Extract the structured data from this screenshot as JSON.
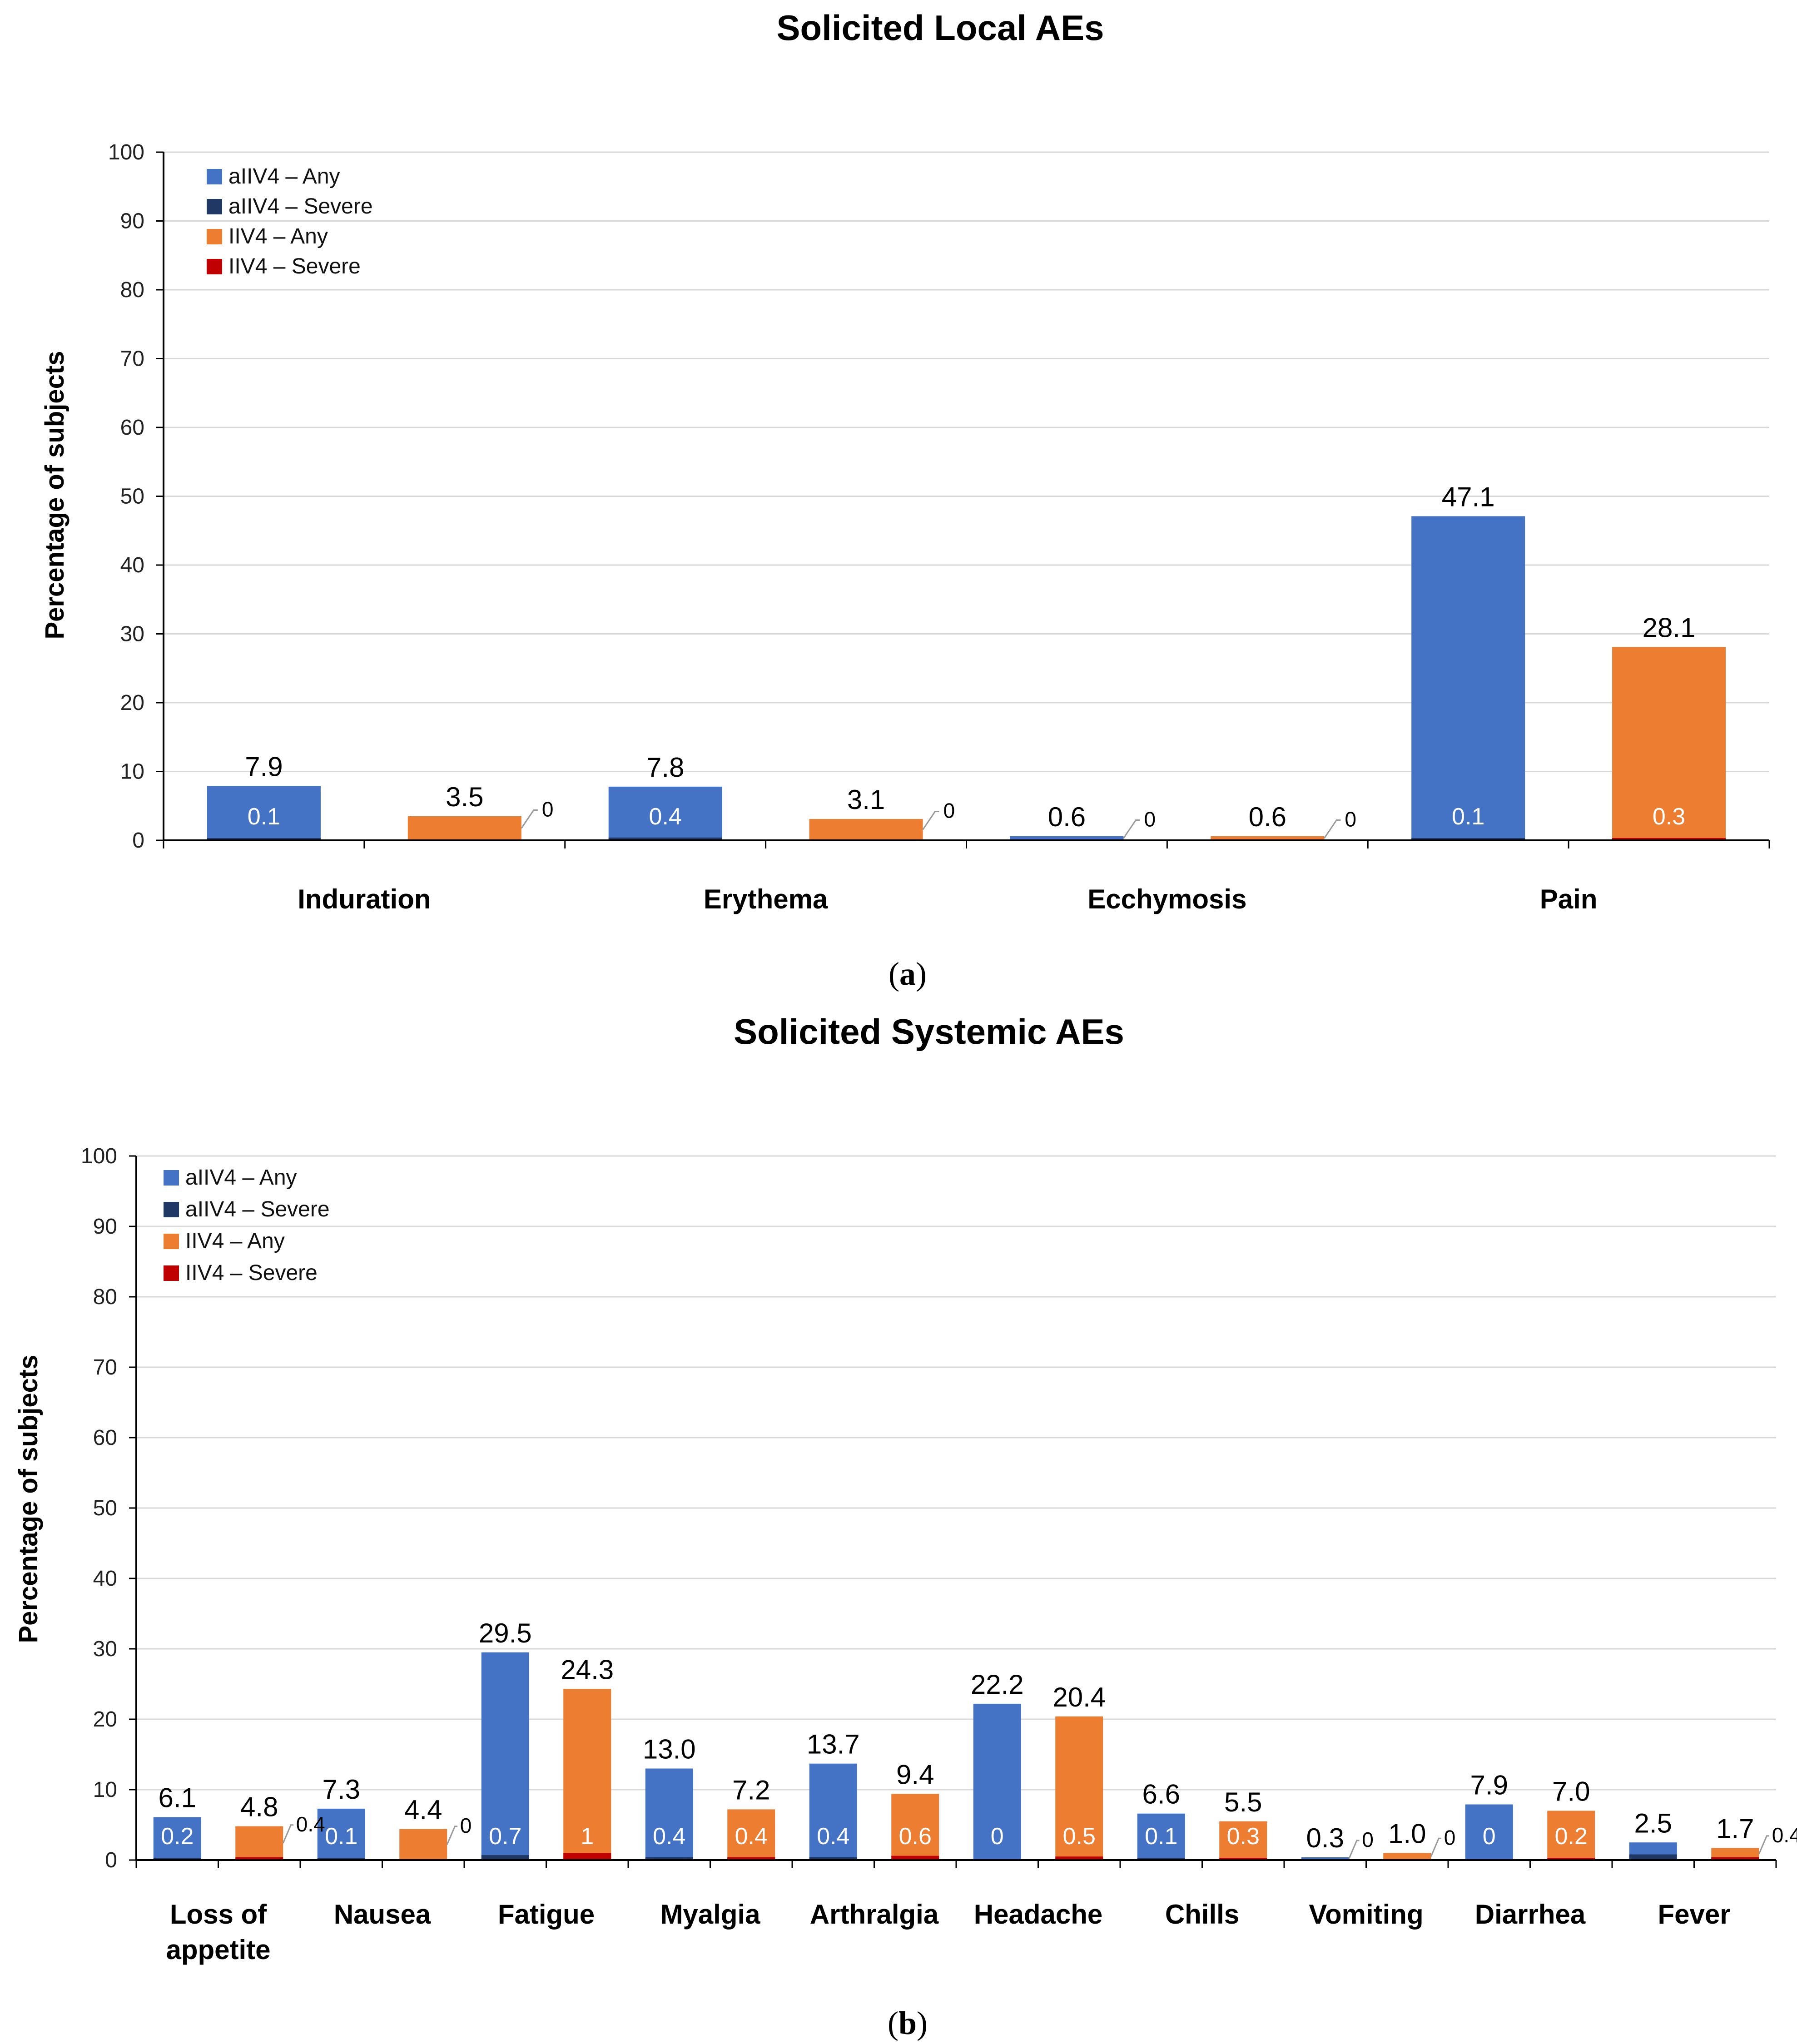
{
  "colors": {
    "aIIV4_any": "#4472C4",
    "aIIV4_severe": "#203864",
    "IIV4_any": "#ED7D31",
    "IIV4_severe": "#C00000",
    "grid": "#D9D9D9",
    "axis": "#000000"
  },
  "panels": [
    {
      "open": "(",
      "letter": "a",
      "close": ")"
    },
    {
      "open": "(",
      "letter": "b",
      "close": ")"
    }
  ],
  "chart_data": [
    {
      "type": "bar",
      "stacked_overlay": true,
      "title": "Solicited Local AEs",
      "ylabel": "Percentage of subjects",
      "xlabel": "",
      "ylim": [
        0,
        100
      ],
      "yticks": [
        0,
        10,
        20,
        30,
        40,
        50,
        60,
        70,
        80,
        90,
        100
      ],
      "grid": true,
      "legend_position": "top-left",
      "legend": [
        "aIIV4 – Any",
        "aIIV4 – Severe",
        "IIV4 – Any",
        "IIV4 – Severe"
      ],
      "categories": [
        "Induration",
        "Erythema",
        "Ecchymosis",
        "Pain"
      ],
      "series": [
        {
          "name": "aIIV4 – Any",
          "values": [
            7.9,
            7.8,
            0.6,
            47.1
          ],
          "labels": [
            "7.9",
            "7.8",
            "0.6",
            "47.1"
          ]
        },
        {
          "name": "aIIV4 – Severe",
          "values": [
            0.1,
            0.4,
            0,
            0.1
          ],
          "labels": [
            "0.1",
            "0.4",
            "0",
            "0.1"
          ]
        },
        {
          "name": "IIV4 – Any",
          "values": [
            3.5,
            3.1,
            0.6,
            28.1
          ],
          "labels": [
            "3.5",
            "3.1",
            "0.6",
            "28.1"
          ]
        },
        {
          "name": "IIV4 – Severe",
          "values": [
            0,
            0,
            0,
            0.3
          ],
          "labels": [
            "0",
            "0",
            "0",
            "0.3"
          ]
        }
      ]
    },
    {
      "type": "bar",
      "stacked_overlay": true,
      "title": "Solicited Systemic AEs",
      "ylabel": "Percentage of subjects",
      "xlabel": "",
      "ylim": [
        0,
        100
      ],
      "yticks": [
        0,
        10,
        20,
        30,
        40,
        50,
        60,
        70,
        80,
        90,
        100
      ],
      "grid": true,
      "legend_position": "top-left",
      "legend": [
        "aIIV4 – Any",
        "aIIV4 – Severe",
        "IIV4 – Any",
        "IIV4 – Severe"
      ],
      "categories": [
        "Loss of appetite",
        "Nausea",
        "Fatigue",
        "Myalgia",
        "Arthralgia",
        "Headache",
        "Chills",
        "Vomiting",
        "Diarrhea",
        "Fever"
      ],
      "category_lines": [
        [
          "Loss of",
          "appetite"
        ],
        [
          "Nausea"
        ],
        [
          "Fatigue"
        ],
        [
          "Myalgia"
        ],
        [
          "Arthralgia"
        ],
        [
          "Headache"
        ],
        [
          "Chills"
        ],
        [
          "Vomiting"
        ],
        [
          "Diarrhea"
        ],
        [
          "Fever"
        ]
      ],
      "series": [
        {
          "name": "aIIV4 – Any",
          "values": [
            6.1,
            7.3,
            29.5,
            13.0,
            13.7,
            22.2,
            6.6,
            0.3,
            7.9,
            2.5
          ],
          "labels": [
            "6.1",
            "7.3",
            "29.5",
            "13.0",
            "13.7",
            "22.2",
            "6.6",
            "0.3",
            "7.9",
            "2.5"
          ]
        },
        {
          "name": "aIIV4 – Severe",
          "values": [
            0.2,
            0.1,
            0.7,
            0.4,
            0.4,
            0,
            0.1,
            0,
            0,
            0.8
          ],
          "labels": [
            "0.2",
            "0.1",
            "0.7",
            "0.4",
            "0.4",
            "0",
            "0.1",
            "0",
            "0",
            ""
          ]
        },
        {
          "name": "IIV4 – Any",
          "values": [
            4.8,
            4.4,
            24.3,
            7.2,
            9.4,
            20.4,
            5.5,
            1.0,
            7.0,
            1.7
          ],
          "labels": [
            "4.8",
            "4.4",
            "24.3",
            "7.2",
            "9.4",
            "20.4",
            "5.5",
            "1.0",
            "7.0",
            "1.7"
          ]
        },
        {
          "name": "IIV4 – Severe",
          "values": [
            0.4,
            0,
            1,
            0.4,
            0.6,
            0.5,
            0.3,
            0,
            0.2,
            0.4
          ],
          "labels": [
            "0.4",
            "0",
            "1",
            "0.4",
            "0.6",
            "0.5",
            "0.3",
            "0",
            "0.2",
            "0.4"
          ]
        }
      ]
    }
  ]
}
